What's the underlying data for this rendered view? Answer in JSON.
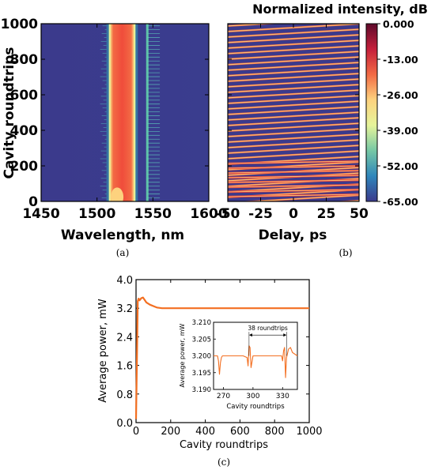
{
  "colorbar": {
    "title": "Normalized intensity, dB",
    "ticks": [
      "0.000",
      "-13.00",
      "-26.00",
      "-39.00",
      "-52.00",
      "-65.00"
    ],
    "values": [
      0,
      -13,
      -26,
      -39,
      -52,
      -65
    ],
    "colors": [
      "#5e0a2b",
      "#c51f3b",
      "#f26a44",
      "#fdd27e",
      "#e6f49a",
      "#76c8a5",
      "#2f86bb",
      "#3b3a8c"
    ]
  },
  "chart_data": [
    {
      "panel": "a",
      "type": "heatmap",
      "caption": "(a)",
      "xlabel": "Wavelength, nm",
      "ylabel": "Cavity roundtrips",
      "xlim": [
        1450,
        1600
      ],
      "ylim": [
        0,
        1000
      ],
      "xticks": [
        1450,
        1500,
        1550,
        1600
      ],
      "yticks": [
        0,
        200,
        400,
        600,
        800,
        1000
      ],
      "band": {
        "center": 1520,
        "low": 1512,
        "high": 1533,
        "secondary_line": 1545
      }
    },
    {
      "panel": "b",
      "type": "heatmap",
      "caption": "(b)",
      "xlabel": "Delay, ps",
      "ylabel": "",
      "xlim": [
        -50,
        50
      ],
      "ylim": [
        0,
        1000
      ],
      "xticks": [
        -50,
        -25,
        0,
        25,
        50
      ]
    },
    {
      "panel": "c",
      "type": "line",
      "caption": "(c)",
      "xlabel": "Cavity roundtrips",
      "ylabel": "Average power, mW",
      "xlim": [
        0,
        1000
      ],
      "ylim": [
        0,
        4.0
      ],
      "xticks": [
        0,
        200,
        400,
        600,
        800,
        1000
      ],
      "yticks": [
        "0.0",
        "0.8",
        "1.6",
        "2.4",
        "3.2",
        "4.0"
      ],
      "color": "#f36f21",
      "series": [
        {
          "x": [
            0,
            5,
            10,
            15,
            20,
            30,
            40,
            50,
            60,
            80,
            100,
            120,
            150,
            200,
            400,
            600,
            800,
            1000
          ],
          "values": [
            0.1,
            1.7,
            3.4,
            3.47,
            3.42,
            3.48,
            3.5,
            3.43,
            3.36,
            3.3,
            3.26,
            3.22,
            3.2,
            3.2,
            3.2,
            3.2,
            3.2,
            3.2
          ]
        }
      ],
      "inset": {
        "type": "line",
        "xlabel": "Cavity roundtrips",
        "ylabel": "Average power, mW",
        "xlim": [
          260,
          345
        ],
        "ylim": [
          3.19,
          3.21
        ],
        "xticks": [
          270,
          300,
          330
        ],
        "yticks": [
          "3.190",
          "3.195",
          "3.200",
          "3.205",
          "3.210"
        ],
        "annotation": "38 roundtrips",
        "annotation_span": [
          296,
          334
        ],
        "series": [
          {
            "x": [
              260,
              264,
              265,
              266,
              267,
              268,
              269,
              280,
              290,
              294,
              295,
              296,
              297,
              298,
              300,
              310,
              325,
              329,
              330,
              331,
              332,
              333,
              334,
              336,
              338,
              340,
              345
            ],
            "values": [
              3.2,
              3.2,
              3.1985,
              3.1945,
              3.198,
              3.1995,
              3.2,
              3.2,
              3.2,
              3.1995,
              3.197,
              3.203,
              3.2025,
              3.1965,
              3.2,
              3.2,
              3.2,
              3.2,
              3.1985,
              3.2015,
              3.2025,
              3.1935,
              3.1995,
              3.202,
              3.2025,
              3.201,
              3.2
            ]
          }
        ]
      }
    }
  ]
}
